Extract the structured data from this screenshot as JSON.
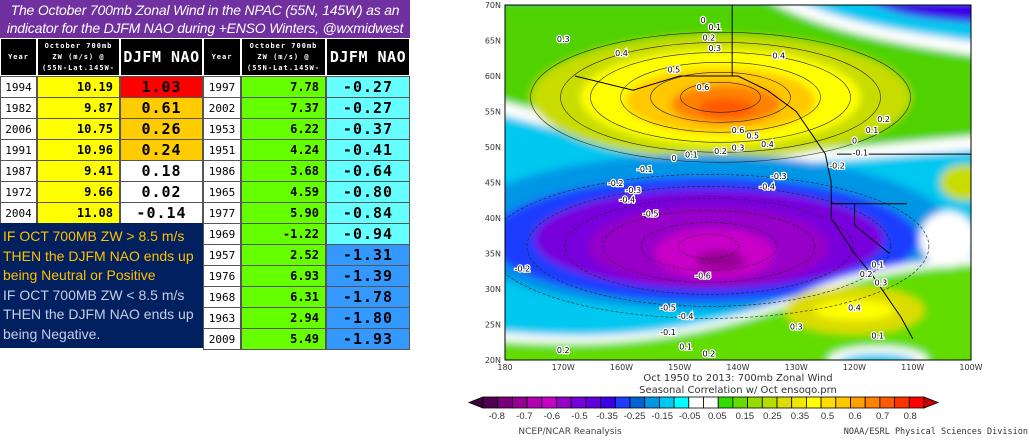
{
  "title_line1": "The October 700mb Zonal Wind in the NPAC (55N, 145W) as an",
  "title_line2": "indicator for the DJFM NAO during +ENSO Winters, @wxmidwest",
  "headers": {
    "year": "Year",
    "zw_l1": "October 700mb",
    "zw_l2": "ZW (m/s) @",
    "zw_l3": "(55N-Lat.145W-",
    "nao": "DJFM NAO"
  },
  "left_rows": [
    {
      "year": "1994",
      "zw": "10.19",
      "nao": "1.03",
      "nao_color": "#ff0000"
    },
    {
      "year": "1982",
      "zw": "9.87",
      "nao": "0.61",
      "nao_color": "#ffcc00"
    },
    {
      "year": "2006",
      "zw": "10.75",
      "nao": "0.26",
      "nao_color": "#ffcc00"
    },
    {
      "year": "1991",
      "zw": "10.96",
      "nao": "0.24",
      "nao_color": "#ffcc00"
    },
    {
      "year": "1987",
      "zw": "9.41",
      "nao": "0.18",
      "nao_color": "#ffffff"
    },
    {
      "year": "1972",
      "zw": "9.66",
      "nao": "0.02",
      "nao_color": "#ffffff"
    },
    {
      "year": "2004",
      "zw": "11.08",
      "nao": "-0.14",
      "nao_color": "#ffffff"
    }
  ],
  "right_rows": [
    {
      "year": "1997",
      "zw": "7.78",
      "nao": "-0.27",
      "nao_color": "#66ffff"
    },
    {
      "year": "2002",
      "zw": "7.37",
      "nao": "-0.27",
      "nao_color": "#66ffff"
    },
    {
      "year": "1953",
      "zw": "6.22",
      "nao": "-0.37",
      "nao_color": "#66ffff"
    },
    {
      "year": "1951",
      "zw": "4.24",
      "nao": "-0.41",
      "nao_color": "#66ffff"
    },
    {
      "year": "1986",
      "zw": "3.68",
      "nao": "-0.64",
      "nao_color": "#66ffff"
    },
    {
      "year": "1965",
      "zw": "4.59",
      "nao": "-0.80",
      "nao_color": "#66ffff"
    },
    {
      "year": "1977",
      "zw": "5.90",
      "nao": "-0.84",
      "nao_color": "#66ffff"
    },
    {
      "year": "1969",
      "zw": "-1.22",
      "nao": "-0.94",
      "nao_color": "#66ffff"
    },
    {
      "year": "1957",
      "zw": "2.52",
      "nao": "-1.31",
      "nao_color": "#3399ff"
    },
    {
      "year": "1976",
      "zw": "6.93",
      "nao": "-1.39",
      "nao_color": "#3399ff"
    },
    {
      "year": "1968",
      "zw": "6.31",
      "nao": "-1.78",
      "nao_color": "#3399ff"
    },
    {
      "year": "1963",
      "zw": "2.94",
      "nao": "-1.80",
      "nao_color": "#3399ff"
    },
    {
      "year": "2009",
      "zw": "5.49",
      "nao": "-1.93",
      "nao_color": "#3399ff"
    }
  ],
  "colors": {
    "zw_left": "#ffff00",
    "zw_right": "#66ff00",
    "title_bg": "#7030a0",
    "note_bg": "#002060"
  },
  "note": {
    "l1": "IF OCT 700MB ZW > 8.5 m/s",
    "l2": "THEN the DJFM NAO ends up",
    "l3": "being Neutral or Positive",
    "l4": "IF OCT 700MB ZW < 8.5 m/s",
    "l5": "THEN the DJFM NAO ends up",
    "l6": "being Negative."
  },
  "chart_data": {
    "type": "heatmap",
    "title": "Oct 1950 to 2013: 700mb Zonal Wind",
    "subtitle": "Seasonal Correlation w/ Oct ensoqo.prn",
    "source": "NCEP/NCAR Reanalysis",
    "credit": "NOAA/ESRL Physical Sciences Division",
    "lat_ticks": [
      "70N",
      "65N",
      "60N",
      "55N",
      "50N",
      "45N",
      "40N",
      "35N",
      "30N",
      "25N",
      "20N"
    ],
    "lon_ticks": [
      "180",
      "170W",
      "160W",
      "150W",
      "140W",
      "130W",
      "120W",
      "110W",
      "100W"
    ],
    "colorbar_labels": [
      "-0.8",
      "-0.7",
      "-0.6",
      "-0.5",
      "-0.35",
      "-0.25",
      "-0.15",
      "-0.05",
      "0.05",
      "0.15",
      "0.25",
      "0.35",
      "0.5",
      "0.6",
      "0.7",
      "0.8"
    ],
    "colorbar_colors": [
      "#500050",
      "#780078",
      "#960096",
      "#b400b4",
      "#c800c8",
      "#9600c8",
      "#7800dc",
      "#6400dc",
      "#3c00e6",
      "#1e3cff",
      "#0064d2",
      "#0096e6",
      "#00c8f0",
      "#00ffff",
      "#ffffff",
      "#ffffff",
      "#32dc00",
      "#64dc00",
      "#96dc00",
      "#b4dc00",
      "#dcdc00",
      "#f0e600",
      "#ffff00",
      "#ffdc00",
      "#ffc800",
      "#ffa000",
      "#ff8200",
      "#ff5a00",
      "#ff3200",
      "#ff0000"
    ],
    "contour_labels": [
      {
        "t": "0",
        "lon": 146,
        "lat": 67.5
      },
      {
        "t": "0.1",
        "lon": 144,
        "lat": 66.5
      },
      {
        "t": "0.2",
        "lon": 145,
        "lat": 65
      },
      {
        "t": "0.3",
        "lon": 144,
        "lat": 63.5
      },
      {
        "t": "0.3",
        "lon": 170,
        "lat": 64.8
      },
      {
        "t": "0.4",
        "lon": 160,
        "lat": 62.8
      },
      {
        "t": "0.4",
        "lon": 133,
        "lat": 62.5
      },
      {
        "t": "0.5",
        "lon": 151,
        "lat": 60.5
      },
      {
        "t": "0.6",
        "lon": 146,
        "lat": 58
      },
      {
        "t": "0.6",
        "lon": 140,
        "lat": 52
      },
      {
        "t": "0.5",
        "lon": 138,
        "lat": 51.2
      },
      {
        "t": "0.4",
        "lon": 138,
        "lat": 50
      },
      {
        "t": "0.3",
        "lon": 140,
        "lat": 49.5
      },
      {
        "t": "0.2",
        "lon": 143,
        "lat": 49
      },
      {
        "t": "0.1",
        "lon": 148,
        "lat": 48.5
      },
      {
        "t": "0",
        "lon": 151,
        "lat": 48
      },
      {
        "t": "-0.1",
        "lon": 156,
        "lat": 46.5
      },
      {
        "t": "-0.2",
        "lon": 161,
        "lat": 44.5
      },
      {
        "t": "-0.3",
        "lon": 159,
        "lat": 43.5
      },
      {
        "t": "-0.4",
        "lon": 159,
        "lat": 42.2
      },
      {
        "t": "-0.5",
        "lon": 155,
        "lat": 40.2
      },
      {
        "t": "-0.3",
        "lon": 133,
        "lat": 45.5
      },
      {
        "t": "-0.4",
        "lon": 135,
        "lat": 44
      },
      {
        "t": "-0.6",
        "lon": 146,
        "lat": 31.5
      },
      {
        "t": "-0.2",
        "lon": 177,
        "lat": 32.5
      },
      {
        "t": "-0.5",
        "lon": 152,
        "lat": 27
      },
      {
        "t": "-0.4",
        "lon": 152,
        "lat": 25.8
      },
      {
        "t": "-0.1",
        "lon": 152,
        "lat": 23.5
      },
      {
        "t": "0.1",
        "lon": 149,
        "lat": 21.5
      },
      {
        "t": "0.2",
        "lon": 170,
        "lat": 21
      },
      {
        "t": "0.2",
        "lon": 145,
        "lat": 20.5
      },
      {
        "t": "0.2",
        "lon": 115,
        "lat": 53.5
      },
      {
        "t": "0.1",
        "lon": 117,
        "lat": 52
      },
      {
        "t": "0",
        "lon": 120,
        "lat": 50.5
      },
      {
        "t": "-0.1",
        "lon": 119,
        "lat": 48.8
      },
      {
        "t": "-0.2",
        "lon": 123,
        "lat": 47
      },
      {
        "t": "0.1",
        "lon": 116,
        "lat": 33
      },
      {
        "t": "0.2",
        "lon": 118,
        "lat": 31.7
      },
      {
        "t": "0.3",
        "lon": 118,
        "lat": 30.5
      },
      {
        "t": "0.4",
        "lon": 120,
        "lat": 27
      },
      {
        "t": "0.3",
        "lon": 130,
        "lat": 24.3
      },
      {
        "t": "0.1",
        "lon": 116,
        "lat": 23
      }
    ]
  }
}
